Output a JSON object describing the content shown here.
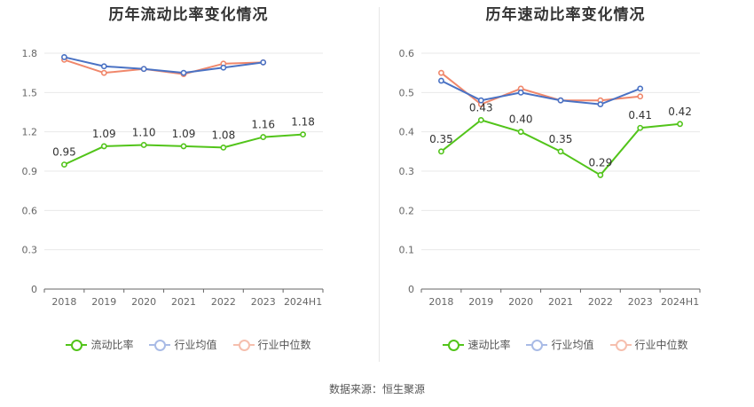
{
  "source_text": "数据来源：恒生聚源",
  "chart_data": [
    {
      "type": "line",
      "title": "历年流动比率变化情况",
      "categories": [
        "2018",
        "2019",
        "2020",
        "2021",
        "2022",
        "2023",
        "2024H1"
      ],
      "ylim": [
        0,
        1.8
      ],
      "yticks": [
        "0",
        "0.3",
        "0.6",
        "0.9",
        "1.2",
        "1.5",
        "1.8"
      ],
      "grid": true,
      "legend_position": "bottom",
      "series": [
        {
          "name": "流动比率",
          "color": "#52c41a",
          "values": [
            0.95,
            1.09,
            1.1,
            1.09,
            1.08,
            1.16,
            1.18
          ],
          "labels": [
            "0.95",
            "1.09",
            "1.10",
            "1.09",
            "1.08",
            "1.16",
            "1.18"
          ]
        },
        {
          "name": "行业均值",
          "color": "#4a72c4",
          "values": [
            1.77,
            1.7,
            1.68,
            1.65,
            1.69,
            1.73,
            null
          ]
        },
        {
          "name": "行业中位数",
          "color": "#f0876b",
          "values": [
            1.75,
            1.65,
            1.68,
            1.64,
            1.72,
            1.73,
            null
          ]
        }
      ]
    },
    {
      "type": "line",
      "title": "历年速动比率变化情况",
      "categories": [
        "2018",
        "2019",
        "2020",
        "2021",
        "2022",
        "2023",
        "2024H1"
      ],
      "ylim": [
        0,
        0.6
      ],
      "yticks": [
        "0",
        "0.1",
        "0.2",
        "0.3",
        "0.4",
        "0.5",
        "0.6"
      ],
      "grid": true,
      "legend_position": "bottom",
      "series": [
        {
          "name": "速动比率",
          "color": "#52c41a",
          "values": [
            0.35,
            0.43,
            0.4,
            0.35,
            0.29,
            0.41,
            0.42
          ],
          "labels": [
            "0.35",
            "0.43",
            "0.40",
            "0.35",
            "0.29",
            "0.41",
            "0.42"
          ]
        },
        {
          "name": "行业均值",
          "color": "#4a72c4",
          "values": [
            0.53,
            0.48,
            0.5,
            0.48,
            0.47,
            0.51,
            null
          ]
        },
        {
          "name": "行业中位数",
          "color": "#f0876b",
          "values": [
            0.55,
            0.47,
            0.51,
            0.48,
            0.48,
            0.49,
            null
          ]
        }
      ]
    }
  ]
}
